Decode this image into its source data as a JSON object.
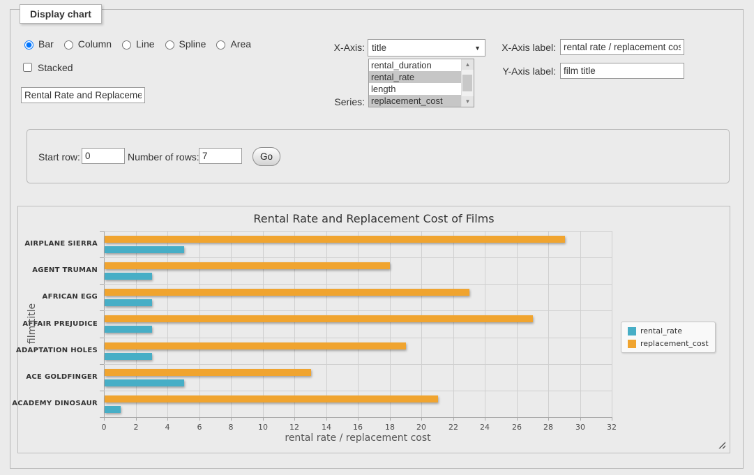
{
  "panel": {
    "legend": "Display chart"
  },
  "chart_type": {
    "options": [
      {
        "label": "Bar",
        "selected": true
      },
      {
        "label": "Column",
        "selected": false
      },
      {
        "label": "Line",
        "selected": false
      },
      {
        "label": "Spline",
        "selected": false
      },
      {
        "label": "Area",
        "selected": false
      }
    ]
  },
  "stacked": {
    "label": "Stacked",
    "checked": false
  },
  "chart_title_input": {
    "value": "Rental Rate and Replacemer"
  },
  "x_axis_select": {
    "label": "X-Axis:",
    "value": "title"
  },
  "series_select": {
    "label": "Series:",
    "options": [
      {
        "label": "rental_duration",
        "selected": false
      },
      {
        "label": "rental_rate",
        "selected": true
      },
      {
        "label": "length",
        "selected": false
      },
      {
        "label": "replacement_cost",
        "selected": true
      }
    ]
  },
  "x_axis_label_input": {
    "label": "X-Axis label:",
    "value": "rental rate / replacement cost"
  },
  "y_axis_label_input": {
    "label": "Y-Axis label:",
    "value": "film title"
  },
  "row_controls": {
    "start_row_label": "Start row:",
    "start_row_value": "0",
    "number_of_rows_label": "Number of rows:",
    "number_of_rows_value": "7",
    "go_label": "Go"
  },
  "chart_data": {
    "type": "bar",
    "orientation": "horizontal",
    "title": "Rental Rate and Replacement Cost of Films",
    "categories": [
      "AIRPLANE SIERRA",
      "AGENT TRUMAN",
      "AFRICAN EGG",
      "AFFAIR PREJUDICE",
      "ADAPTATION HOLES",
      "ACE GOLDFINGER",
      "ACADEMY DINOSAUR"
    ],
    "series": [
      {
        "name": "rental_rate",
        "color": "#47AEC6",
        "values": [
          4.99,
          2.99,
          2.99,
          2.99,
          2.99,
          4.99,
          0.99
        ]
      },
      {
        "name": "replacement_cost",
        "color": "#F0A42F",
        "values": [
          28.99,
          17.99,
          22.99,
          26.99,
          18.99,
          12.99,
          20.99
        ]
      }
    ],
    "xlabel": "rental rate / replacement cost",
    "ylabel": "film title",
    "xlim": [
      0,
      32
    ],
    "xtick_step": 2,
    "grid": true,
    "legend_position": "right"
  }
}
